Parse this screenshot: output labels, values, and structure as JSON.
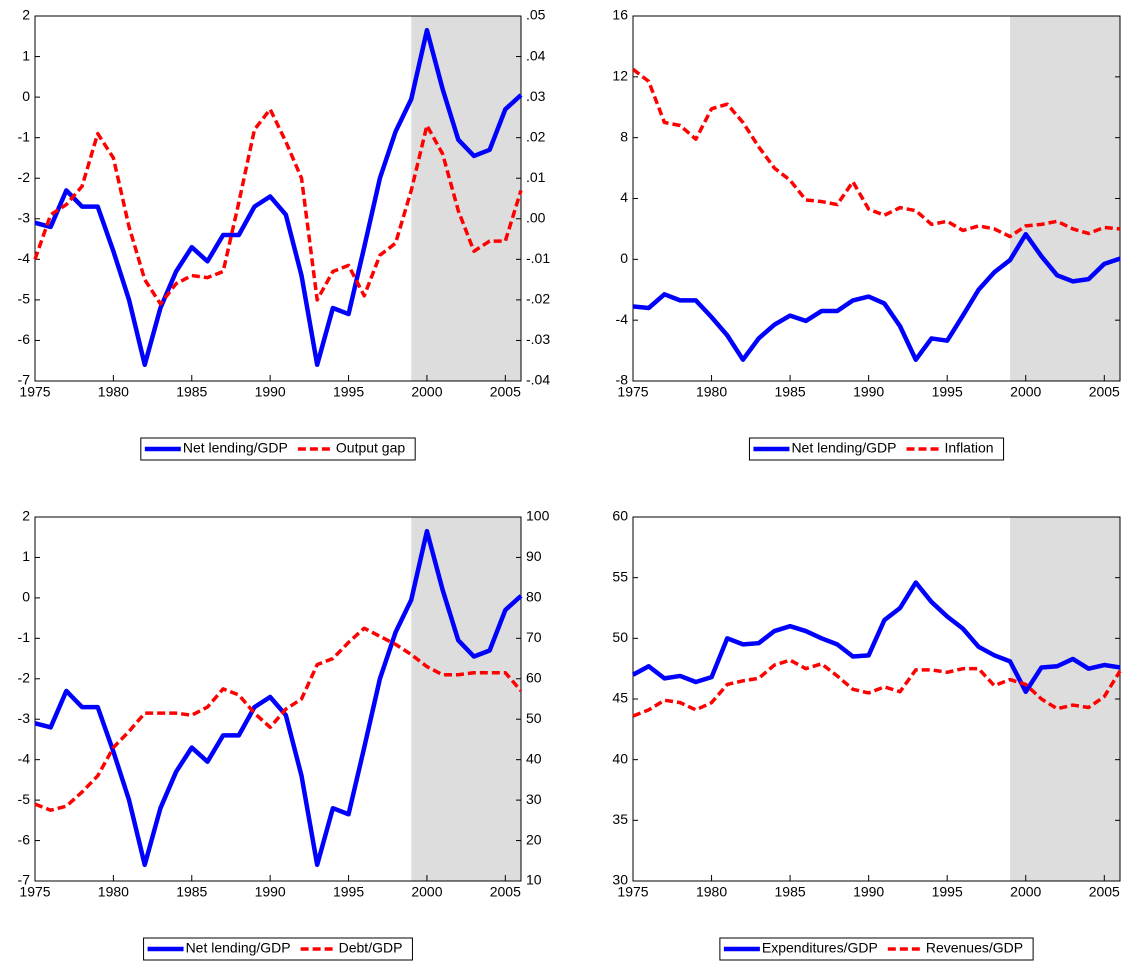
{
  "chart_data": [
    {
      "type": "line",
      "x": [
        1975,
        1976,
        1977,
        1978,
        1979,
        1980,
        1981,
        1982,
        1983,
        1984,
        1985,
        1986,
        1987,
        1988,
        1989,
        1990,
        1991,
        1992,
        1993,
        1994,
        1995,
        1996,
        1997,
        1998,
        1999,
        2000,
        2001,
        2002,
        2003,
        2004,
        2005,
        2006
      ],
      "xlim": [
        1975,
        2006
      ],
      "xticks": [
        1975,
        1980,
        1985,
        1990,
        1995,
        2000,
        2005
      ],
      "ylim": [
        -7,
        2
      ],
      "yticks": [
        -7,
        -6,
        -5,
        -4,
        -3,
        -2,
        -1,
        0,
        1,
        2
      ],
      "y2lim": [
        -0.04,
        0.05
      ],
      "y2ticks": [
        {
          "value": -0.04,
          "label": "-.04"
        },
        {
          "value": -0.03,
          "label": "-.03"
        },
        {
          "value": -0.02,
          "label": "-.02"
        },
        {
          "value": -0.01,
          "label": "-.01"
        },
        {
          "value": 0,
          "label": ".00"
        },
        {
          "value": 0.01,
          "label": ".01"
        },
        {
          "value": 0.02,
          "label": ".02"
        },
        {
          "value": 0.03,
          "label": ".03"
        },
        {
          "value": 0.04,
          "label": ".04"
        },
        {
          "value": 0.05,
          "label": ".05"
        }
      ],
      "shaded_x": [
        1999,
        2006
      ],
      "legend": "bottom",
      "series": [
        {
          "name": "Net lending/GDP",
          "color": "#0000ff",
          "dashed": false,
          "values": [
            -3.1,
            -3.2,
            -2.3,
            -2.7,
            -2.7,
            -3.8,
            -5.0,
            -6.6,
            -5.2,
            -4.3,
            -3.7,
            -4.05,
            -3.4,
            -3.4,
            -2.7,
            -2.45,
            -2.9,
            -4.4,
            -6.6,
            -5.2,
            -5.35,
            -3.7,
            -2.0,
            -0.85,
            -0.05,
            1.65,
            0.2,
            -1.05,
            -1.45,
            -1.3,
            -0.3,
            0.05
          ]
        },
        {
          "name": "Output gap",
          "color": "#ff0000",
          "dashed": true,
          "axis": "y2",
          "values": [
            -0.01,
            0.001,
            0.0035,
            0.008,
            0.021,
            0.015,
            -0.002,
            -0.015,
            -0.021,
            -0.016,
            -0.014,
            -0.0145,
            -0.013,
            0.004,
            0.022,
            0.027,
            0.019,
            0.01,
            -0.02,
            -0.013,
            -0.0115,
            -0.019,
            -0.009,
            -0.006,
            0.007,
            0.023,
            0.016,
            0.002,
            -0.008,
            -0.0055,
            -0.0055,
            0.007
          ]
        }
      ]
    },
    {
      "type": "line",
      "x": [
        1975,
        1976,
        1977,
        1978,
        1979,
        1980,
        1981,
        1982,
        1983,
        1984,
        1985,
        1986,
        1987,
        1988,
        1989,
        1990,
        1991,
        1992,
        1993,
        1994,
        1995,
        1996,
        1997,
        1998,
        1999,
        2000,
        2001,
        2002,
        2003,
        2004,
        2005,
        2006
      ],
      "xlim": [
        1975,
        2006
      ],
      "xticks": [
        1975,
        1980,
        1985,
        1990,
        1995,
        2000,
        2005
      ],
      "ylim": [
        -8,
        16
      ],
      "yticks": [
        -8,
        -4,
        0,
        4,
        8,
        12,
        16
      ],
      "shaded_x": [
        1999,
        2006
      ],
      "legend": "bottom",
      "series": [
        {
          "name": "Net lending/GDP",
          "color": "#0000ff",
          "dashed": false,
          "values": [
            -3.1,
            -3.2,
            -2.3,
            -2.7,
            -2.7,
            -3.8,
            -5.0,
            -6.6,
            -5.2,
            -4.3,
            -3.7,
            -4.05,
            -3.4,
            -3.4,
            -2.7,
            -2.45,
            -2.9,
            -4.4,
            -6.6,
            -5.2,
            -5.35,
            -3.7,
            -2.0,
            -0.85,
            -0.05,
            1.65,
            0.2,
            -1.05,
            -1.45,
            -1.3,
            -0.3,
            0.05
          ]
        },
        {
          "name": "Inflation",
          "color": "#ff0000",
          "dashed": true,
          "values": [
            12.5,
            11.7,
            9.0,
            8.8,
            7.9,
            9.9,
            10.2,
            9.0,
            7.4,
            6.0,
            5.2,
            3.9,
            3.8,
            3.6,
            5.1,
            3.3,
            2.9,
            3.4,
            3.2,
            2.3,
            2.5,
            1.9,
            2.2,
            2.0,
            1.5,
            2.2,
            2.3,
            2.5,
            2.0,
            1.7,
            2.1,
            2.0
          ]
        }
      ]
    },
    {
      "type": "line",
      "x": [
        1975,
        1976,
        1977,
        1978,
        1979,
        1980,
        1981,
        1982,
        1983,
        1984,
        1985,
        1986,
        1987,
        1988,
        1989,
        1990,
        1991,
        1992,
        1993,
        1994,
        1995,
        1996,
        1997,
        1998,
        1999,
        2000,
        2001,
        2002,
        2003,
        2004,
        2005,
        2006
      ],
      "xlim": [
        1975,
        2006
      ],
      "xticks": [
        1975,
        1980,
        1985,
        1990,
        1995,
        2000,
        2005
      ],
      "ylim": [
        -7,
        2
      ],
      "yticks": [
        -7,
        -6,
        -5,
        -4,
        -3,
        -2,
        -1,
        0,
        1,
        2
      ],
      "y2lim": [
        10,
        100
      ],
      "y2ticks": [
        10,
        20,
        30,
        40,
        50,
        60,
        70,
        80,
        90,
        100
      ],
      "shaded_x": [
        1999,
        2006
      ],
      "legend": "bottom",
      "series": [
        {
          "name": "Net lending/GDP",
          "color": "#0000ff",
          "dashed": false,
          "values": [
            -3.1,
            -3.2,
            -2.3,
            -2.7,
            -2.7,
            -3.8,
            -5.0,
            -6.6,
            -5.2,
            -4.3,
            -3.7,
            -4.05,
            -3.4,
            -3.4,
            -2.7,
            -2.45,
            -2.9,
            -4.4,
            -6.6,
            -5.2,
            -5.35,
            -3.7,
            -2.0,
            -0.85,
            -0.05,
            1.65,
            0.2,
            -1.05,
            -1.45,
            -1.3,
            -0.3,
            0.05
          ]
        },
        {
          "name": "Debt/GDP",
          "color": "#ff0000",
          "dashed": true,
          "axis": "y2",
          "values": [
            29,
            27.5,
            28.5,
            32,
            36,
            43,
            47,
            51.5,
            51.5,
            51.5,
            51,
            53,
            57.5,
            56,
            51.5,
            48,
            52.5,
            55,
            63.5,
            65,
            69,
            72.5,
            70.5,
            68.5,
            66,
            63,
            61,
            61,
            61.5,
            61.5,
            61.5,
            57
          ]
        }
      ]
    },
    {
      "type": "line",
      "x": [
        1975,
        1976,
        1977,
        1978,
        1979,
        1980,
        1981,
        1982,
        1983,
        1984,
        1985,
        1986,
        1987,
        1988,
        1989,
        1990,
        1991,
        1992,
        1993,
        1994,
        1995,
        1996,
        1997,
        1998,
        1999,
        2000,
        2001,
        2002,
        2003,
        2004,
        2005,
        2006
      ],
      "xlim": [
        1975,
        2006
      ],
      "xticks": [
        1975,
        1980,
        1985,
        1990,
        1995,
        2000,
        2005
      ],
      "ylim": [
        30,
        60
      ],
      "yticks": [
        30,
        35,
        40,
        45,
        50,
        55,
        60
      ],
      "shaded_x": [
        1999,
        2006
      ],
      "legend": "bottom",
      "series": [
        {
          "name": "Expenditures/GDP",
          "color": "#0000ff",
          "dashed": false,
          "values": [
            47.0,
            47.7,
            46.7,
            46.9,
            46.4,
            46.8,
            50.0,
            49.5,
            49.6,
            50.6,
            51.0,
            50.6,
            50.0,
            49.5,
            48.5,
            48.6,
            51.5,
            52.5,
            54.6,
            53.0,
            51.8,
            50.8,
            49.3,
            48.6,
            48.1,
            45.6,
            47.6,
            47.7,
            48.3,
            47.5,
            47.8,
            47.6
          ]
        },
        {
          "name": "Revenues/GDP",
          "color": "#ff0000",
          "dashed": true,
          "values": [
            43.6,
            44.1,
            44.9,
            44.7,
            44.1,
            44.7,
            46.2,
            46.5,
            46.7,
            47.8,
            48.2,
            47.5,
            47.9,
            46.9,
            45.8,
            45.5,
            46.0,
            45.6,
            47.4,
            47.4,
            47.2,
            47.5,
            47.5,
            46.1,
            46.6,
            46.2,
            45.0,
            44.2,
            44.5,
            44.3,
            45.2,
            47.3
          ]
        }
      ]
    }
  ]
}
